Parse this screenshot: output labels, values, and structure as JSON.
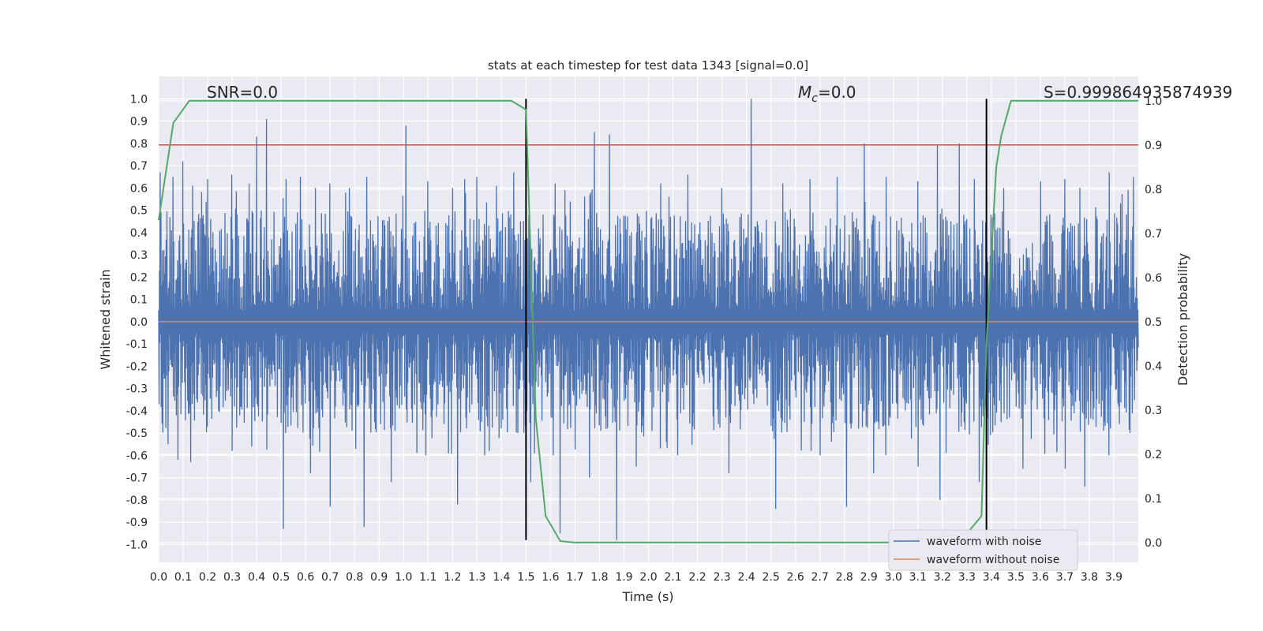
{
  "chart_data": {
    "type": "line",
    "title": "stats at each timestep for test data 1343 [signal=0.0]",
    "xlabel": "Time (s)",
    "ylabel": "Whitened strain",
    "y2label": "Detection probability",
    "xlim": [
      0.0,
      4.0
    ],
    "ylim": [
      -1.08,
      1.1
    ],
    "y2lim": [
      -0.045,
      1.055
    ],
    "xticks": [
      "0.0",
      "0.1",
      "0.2",
      "0.3",
      "0.4",
      "0.5",
      "0.6",
      "0.7",
      "0.8",
      "0.9",
      "1.0",
      "1.1",
      "1.2",
      "1.3",
      "1.4",
      "1.5",
      "1.6",
      "1.7",
      "1.8",
      "1.9",
      "2.0",
      "2.1",
      "2.2",
      "2.3",
      "2.4",
      "2.5",
      "2.6",
      "2.7",
      "2.8",
      "2.9",
      "3.0",
      "3.1",
      "3.2",
      "3.3",
      "3.4",
      "3.5",
      "3.6",
      "3.7",
      "3.8",
      "3.9"
    ],
    "yticks": [
      "1.0",
      "0.9",
      "0.8",
      "0.7",
      "0.6",
      "0.5",
      "0.4",
      "0.3",
      "0.2",
      "0.1",
      "0.0",
      "-0.1",
      "-0.2",
      "-0.3",
      "-0.4",
      "-0.5",
      "-0.6",
      "-0.7",
      "-0.8",
      "-0.9",
      "-1.0"
    ],
    "y2ticks": [
      "1.0",
      "0.9",
      "0.8",
      "0.7",
      "0.6",
      "0.5",
      "0.4",
      "0.3",
      "0.2",
      "0.1",
      "0.0"
    ],
    "annotations": {
      "snr": "SNR=0.0",
      "mc_symbol": "M",
      "mc_sub": "c",
      "mc_value": "=0.0",
      "s": "S=0.999864935874939"
    },
    "legend": {
      "placement": "lower-right",
      "entries": [
        "waveform with noise",
        "waveform without noise"
      ]
    },
    "grid": true,
    "series": [
      {
        "name": "waveform with noise",
        "color": "#4c72b0",
        "axis": "left",
        "envelope_peaks": [
          [
            0.005,
            0.67
          ],
          [
            0.06,
            0.65
          ],
          [
            0.1,
            0.72
          ],
          [
            0.14,
            0.61
          ],
          [
            0.2,
            0.64
          ],
          [
            0.3,
            0.66
          ],
          [
            0.37,
            0.62
          ],
          [
            0.4,
            0.83
          ],
          [
            0.44,
            0.91
          ],
          [
            0.52,
            0.64
          ],
          [
            0.58,
            0.65
          ],
          [
            0.64,
            0.6
          ],
          [
            0.7,
            0.62
          ],
          [
            0.78,
            0.6
          ],
          [
            0.85,
            0.65
          ],
          [
            1.01,
            0.88
          ],
          [
            1.1,
            0.63
          ],
          [
            1.2,
            0.6
          ],
          [
            1.25,
            0.64
          ],
          [
            1.3,
            0.65
          ],
          [
            1.38,
            0.61
          ],
          [
            1.45,
            0.67
          ],
          [
            1.62,
            0.62
          ],
          [
            1.66,
            0.59
          ],
          [
            1.78,
            0.85
          ],
          [
            1.84,
            0.84
          ],
          [
            2.05,
            0.62
          ],
          [
            2.16,
            0.66
          ],
          [
            2.3,
            0.6
          ],
          [
            2.42,
            1.0
          ],
          [
            2.55,
            0.62
          ],
          [
            2.66,
            0.64
          ],
          [
            2.77,
            0.65
          ],
          [
            2.88,
            0.8
          ],
          [
            2.97,
            0.65
          ],
          [
            3.1,
            0.63
          ],
          [
            3.18,
            0.79
          ],
          [
            3.27,
            0.8
          ],
          [
            3.33,
            0.64
          ],
          [
            3.45,
            0.6
          ],
          [
            3.6,
            0.63
          ],
          [
            3.7,
            0.64
          ],
          [
            3.76,
            0.6
          ],
          [
            3.88,
            0.67
          ],
          [
            3.98,
            0.65
          ]
        ],
        "envelope_troughs": [
          [
            0.04,
            -0.55
          ],
          [
            0.08,
            -0.62
          ],
          [
            0.13,
            -0.63
          ],
          [
            0.3,
            -0.58
          ],
          [
            0.38,
            -0.56
          ],
          [
            0.51,
            -0.93
          ],
          [
            0.62,
            -0.68
          ],
          [
            0.7,
            -0.83
          ],
          [
            0.84,
            -0.92
          ],
          [
            0.95,
            -0.72
          ],
          [
            1.09,
            -0.6
          ],
          [
            1.22,
            -0.82
          ],
          [
            1.33,
            -0.6
          ],
          [
            1.52,
            -0.72
          ],
          [
            1.64,
            -0.95
          ],
          [
            1.76,
            -0.7
          ],
          [
            1.87,
            -0.98
          ],
          [
            1.95,
            -0.65
          ],
          [
            2.12,
            -0.6
          ],
          [
            2.33,
            -0.68
          ],
          [
            2.52,
            -0.84
          ],
          [
            2.7,
            -0.6
          ],
          [
            2.81,
            -0.83
          ],
          [
            2.92,
            -0.68
          ],
          [
            3.1,
            -0.65
          ],
          [
            3.19,
            -0.8
          ],
          [
            3.35,
            -0.72
          ],
          [
            3.53,
            -0.66
          ],
          [
            3.7,
            -0.66
          ],
          [
            3.78,
            -0.74
          ],
          [
            3.88,
            -0.6
          ]
        ]
      },
      {
        "name": "waveform without noise",
        "color": "#dd8452",
        "axis": "left",
        "x": [
          0.0,
          4.0
        ],
        "y": [
          0.0,
          0.0
        ]
      },
      {
        "name": "detection probability",
        "color": "#55a868",
        "axis": "right",
        "x": [
          0.0,
          0.06,
          0.125,
          0.44,
          1.44,
          1.5,
          1.54,
          1.58,
          1.64,
          1.7,
          2.0,
          3.0,
          3.3,
          3.36,
          3.38,
          3.42,
          3.44,
          3.48,
          3.52,
          4.0
        ],
        "y": [
          0.73,
          0.95,
          1.0,
          1.0,
          1.0,
          0.98,
          0.28,
          0.06,
          0.003,
          0.0,
          0.0,
          0.0,
          0.02,
          0.06,
          0.45,
          0.85,
          0.92,
          1.0,
          1.0,
          1.0
        ]
      }
    ],
    "threshold_line": {
      "axis": "right",
      "y": 0.9,
      "color": "#c44e52"
    },
    "vertical_lines": {
      "x": [
        1.5,
        3.38
      ],
      "ymin": -0.98,
      "ymax": 1.0,
      "color": "#000000"
    }
  }
}
